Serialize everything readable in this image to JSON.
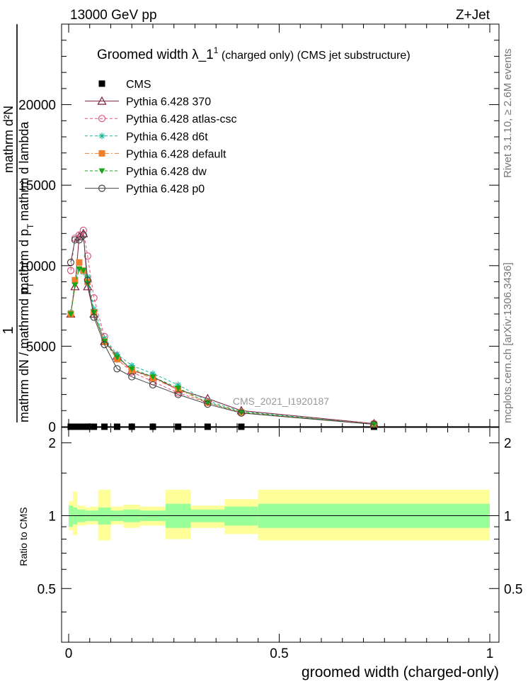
{
  "header": {
    "left": "13000 GeV pp",
    "right": "Z+Jet"
  },
  "side_labels": {
    "rivet": "Rivet 3.1.10, ≥ 2.6M events",
    "mcplots": "mcplots.cern.ch [arXiv:1306.3436]"
  },
  "analysis_id": "CMS_2021_I1920187",
  "chart_data": [
    {
      "type": "line",
      "title": "Groomed width  λ_1¹ (charged only) (CMS jet substructure)",
      "title_main": "Groomed width  λ_1",
      "title_sup": "1",
      "title_tail": " (charged only) (CMS jet substructure)",
      "ylabel": "1 / mathrm d N / mathrmd p_T   mathrm d²N / mathrm d p_T mathrm d lambda",
      "ylabel_parts": {
        "frac_numerator_one": "1",
        "frac_denominator": "mathrm dN / mathrmd p",
        "frac_denominator_sub": "T",
        "numerator": "mathrm d²N",
        "denominator": "mathrm d p",
        "denominator_sub": "T",
        "denominator_tail": "mathrm d lambda"
      },
      "xlim": [
        0,
        1
      ],
      "ylim": [
        0,
        25000
      ],
      "y_ticks": [
        0,
        5000,
        10000,
        15000,
        20000
      ],
      "y_tick_labels": [
        "0",
        "5000",
        "10000",
        "15000",
        "20000"
      ],
      "legend_position": "top-left",
      "cms_bins": [
        [
          0,
          0.01
        ],
        [
          0.01,
          0.02
        ],
        [
          0.02,
          0.03
        ],
        [
          0.03,
          0.04
        ],
        [
          0.04,
          0.05
        ],
        [
          0.05,
          0.07
        ],
        [
          0.07,
          0.1
        ],
        [
          0.1,
          0.13
        ],
        [
          0.13,
          0.17
        ],
        [
          0.17,
          0.23
        ],
        [
          0.23,
          0.29
        ],
        [
          0.29,
          0.37
        ],
        [
          0.37,
          0.45
        ],
        [
          0.45,
          1.0
        ]
      ],
      "series": [
        {
          "name": "CMS",
          "color": "#000000",
          "marker": "square"
        },
        {
          "name": "Pythia 6.428 370",
          "color": "#7a1e3c",
          "marker": "triangle-open",
          "dash": "",
          "x": [
            0.005,
            0.015,
            0.025,
            0.035,
            0.045,
            0.06,
            0.085,
            0.115,
            0.15,
            0.2,
            0.26,
            0.33,
            0.41,
            0.725
          ],
          "y": [
            7000,
            8700,
            11800,
            12000,
            8700,
            7000,
            5300,
            4400,
            3500,
            3100,
            2300,
            1750,
            1000,
            200
          ]
        },
        {
          "name": "Pythia 6.428 atlas-csc",
          "color": "#e0507a",
          "marker": "circle-open",
          "dash": "4,3",
          "x": [
            0.005,
            0.015,
            0.025,
            0.035,
            0.045,
            0.06,
            0.085,
            0.115,
            0.15,
            0.2,
            0.26,
            0.33,
            0.41,
            0.725
          ],
          "y": [
            9700,
            11700,
            11900,
            12200,
            10600,
            8000,
            5600,
            4200,
            3400,
            2800,
            2100,
            1500,
            850,
            200
          ]
        },
        {
          "name": "Pythia 6.428 d6t",
          "color": "#19b89a",
          "marker": "star",
          "dash": "4,3",
          "x": [
            0.005,
            0.015,
            0.025,
            0.035,
            0.045,
            0.06,
            0.085,
            0.115,
            0.15,
            0.2,
            0.26,
            0.33,
            0.41,
            0.725
          ],
          "y": [
            7100,
            9000,
            9800,
            9600,
            9300,
            7300,
            5500,
            4500,
            3800,
            3300,
            2600,
            1600,
            950,
            150
          ]
        },
        {
          "name": "Pythia 6.428 default",
          "color": "#f07f2a",
          "marker": "square",
          "dash": "6,3,2,3",
          "x": [
            0.005,
            0.015,
            0.025,
            0.035,
            0.045,
            0.06,
            0.085,
            0.115,
            0.15,
            0.2,
            0.26,
            0.33,
            0.41,
            0.725
          ],
          "y": [
            7000,
            9100,
            10200,
            9700,
            9000,
            7100,
            5300,
            4200,
            3500,
            3000,
            2300,
            1500,
            900,
            150
          ]
        },
        {
          "name": "Pythia 6.428 dw",
          "color": "#18a518",
          "marker": "triangle-down",
          "dash": "4,3",
          "x": [
            0.005,
            0.015,
            0.025,
            0.035,
            0.045,
            0.06,
            0.085,
            0.115,
            0.15,
            0.2,
            0.26,
            0.33,
            0.41,
            0.725
          ],
          "y": [
            7000,
            8800,
            9800,
            9700,
            8900,
            7100,
            5300,
            4300,
            3600,
            3100,
            2400,
            1500,
            900,
            150
          ]
        },
        {
          "name": "Pythia 6.428 p0",
          "color": "#444444",
          "marker": "circle-open",
          "dash": "",
          "x": [
            0.005,
            0.015,
            0.025,
            0.035,
            0.045,
            0.06,
            0.085,
            0.115,
            0.15,
            0.2,
            0.26,
            0.33,
            0.41,
            0.725
          ],
          "y": [
            10200,
            11600,
            11600,
            11900,
            9100,
            6800,
            5100,
            3600,
            3100,
            2600,
            2000,
            1400,
            850,
            150
          ]
        }
      ]
    },
    {
      "type": "area",
      "ylabel": "Ratio to CMS",
      "xlabel": "groomed width (charged-only)",
      "xlim": [
        0,
        1
      ],
      "ylim": [
        0.3,
        2.3
      ],
      "y_scale": "log",
      "y_ticks": [
        0.5,
        1,
        2
      ],
      "y_tick_labels": [
        "0.5",
        "1",
        "2"
      ],
      "x_ticks": [
        0,
        0.5,
        1
      ],
      "x_tick_labels": [
        "0",
        "0.5",
        "1"
      ],
      "reference_line": 1,
      "bands": [
        {
          "name": "stat",
          "color": "#99ff99"
        },
        {
          "name": "total",
          "color": "#ffff99"
        }
      ],
      "bins": [
        {
          "x": [
            0.0,
            0.01
          ],
          "stat": [
            0.9,
            1.1
          ],
          "total": [
            0.87,
            1.15
          ]
        },
        {
          "x": [
            0.01,
            0.02
          ],
          "stat": [
            0.92,
            1.08
          ],
          "total": [
            0.83,
            1.26
          ]
        },
        {
          "x": [
            0.02,
            0.03
          ],
          "stat": [
            0.94,
            1.06
          ],
          "total": [
            0.91,
            1.1
          ]
        },
        {
          "x": [
            0.03,
            0.04
          ],
          "stat": [
            0.94,
            1.06
          ],
          "total": [
            0.91,
            1.1
          ]
        },
        {
          "x": [
            0.04,
            0.05
          ],
          "stat": [
            0.95,
            1.05
          ],
          "total": [
            0.92,
            1.08
          ]
        },
        {
          "x": [
            0.05,
            0.07
          ],
          "stat": [
            0.95,
            1.05
          ],
          "total": [
            0.92,
            1.09
          ]
        },
        {
          "x": [
            0.07,
            0.1
          ],
          "stat": [
            0.92,
            1.08
          ],
          "total": [
            0.79,
            1.28
          ]
        },
        {
          "x": [
            0.1,
            0.13
          ],
          "stat": [
            0.95,
            1.05
          ],
          "total": [
            0.92,
            1.09
          ]
        },
        {
          "x": [
            0.13,
            0.17
          ],
          "stat": [
            0.94,
            1.06
          ],
          "total": [
            0.89,
            1.11
          ]
        },
        {
          "x": [
            0.17,
            0.23
          ],
          "stat": [
            0.95,
            1.05
          ],
          "total": [
            0.91,
            1.09
          ]
        },
        {
          "x": [
            0.23,
            0.29
          ],
          "stat": [
            0.89,
            1.12
          ],
          "total": [
            0.8,
            1.28
          ]
        },
        {
          "x": [
            0.29,
            0.37
          ],
          "stat": [
            0.94,
            1.06
          ],
          "total": [
            0.89,
            1.1
          ]
        },
        {
          "x": [
            0.37,
            0.45
          ],
          "stat": [
            0.91,
            1.09
          ],
          "total": [
            0.84,
            1.17
          ]
        },
        {
          "x": [
            0.45,
            1.0
          ],
          "stat": [
            0.89,
            1.12
          ],
          "total": [
            0.79,
            1.28
          ]
        }
      ]
    }
  ]
}
